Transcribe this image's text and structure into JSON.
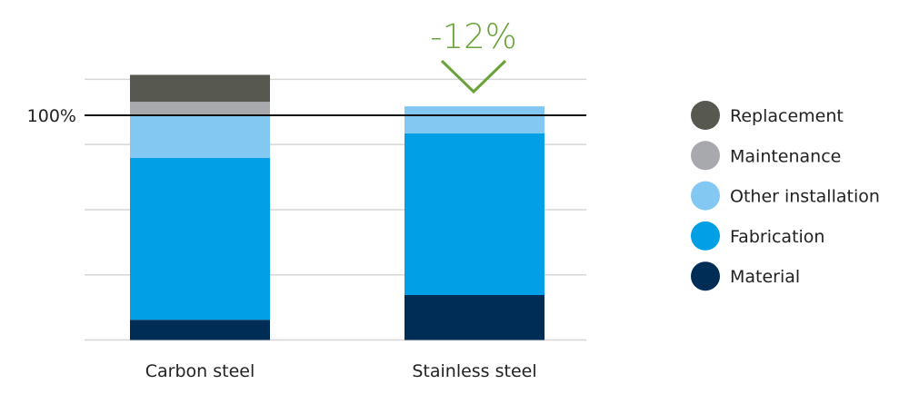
{
  "chart_data": {
    "type": "bar",
    "stacked": true,
    "title": "",
    "xlabel": "",
    "ylabel": "",
    "ylim": [
      0,
      127
    ],
    "reference_line": {
      "value": 100,
      "label": "100%"
    },
    "gridlines": [
      29,
      58,
      87,
      116
    ],
    "grid": true,
    "categories": [
      "Carbon steel",
      "Stainless steel"
    ],
    "series": [
      {
        "name": "Material",
        "color": "#002d56",
        "values": [
          9,
          20
        ]
      },
      {
        "name": "Fabrication",
        "color": "#009fe6",
        "values": [
          72,
          72
        ]
      },
      {
        "name": "Other installation",
        "color": "#82c8f2",
        "values": [
          19,
          12
        ]
      },
      {
        "name": "Maintenance",
        "color": "#a7a9ac",
        "values": [
          6,
          0
        ]
      },
      {
        "name": "Replacement",
        "color": "#575850",
        "values": [
          12,
          0
        ]
      }
    ],
    "legend_order": [
      "Replacement",
      "Maintenance",
      "Other installation",
      "Fabrication",
      "Material"
    ],
    "legend_placement": "right",
    "annotation": {
      "text": "-12%",
      "color": "#6aa23a",
      "target": "Stainless steel",
      "icon": "chevron-down-icon"
    }
  }
}
